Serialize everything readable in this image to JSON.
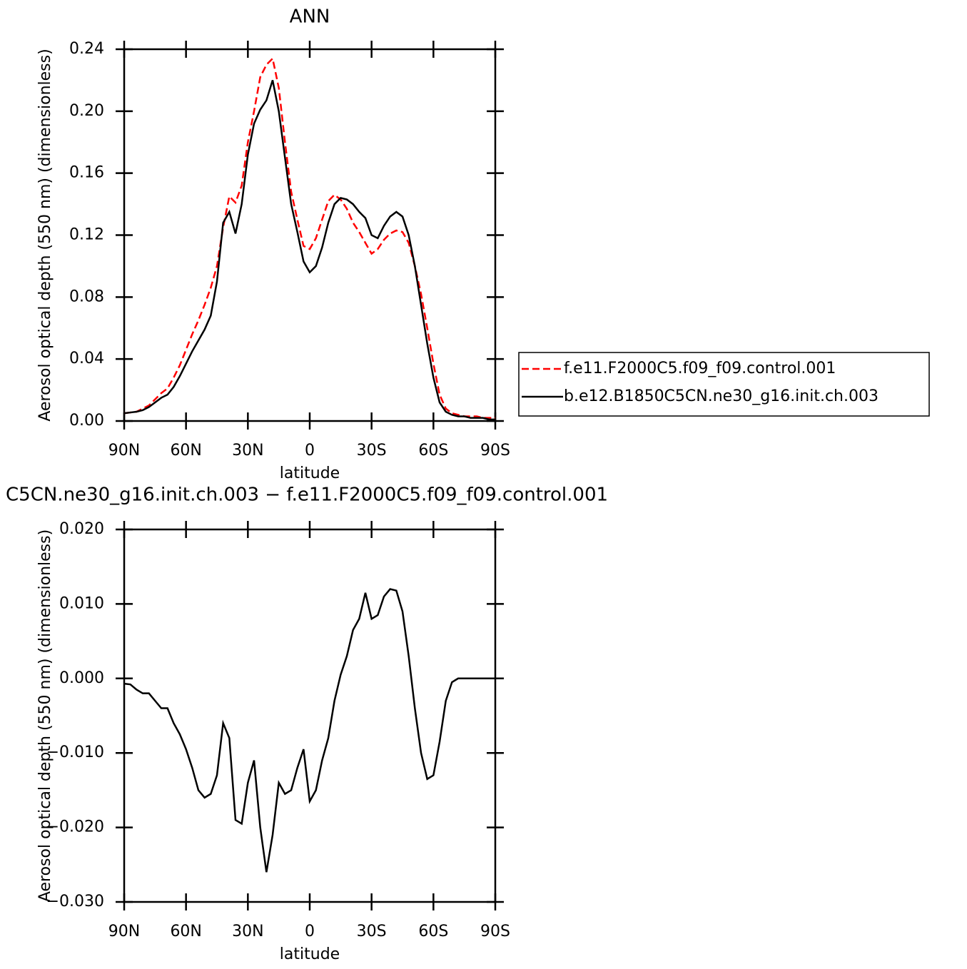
{
  "chart_data": [
    {
      "type": "line",
      "title": "ANN",
      "xlabel": "latitude",
      "ylabel": "Aerosol optical depth (550 nm) (dimensionless)",
      "x": [
        90,
        87,
        84,
        81,
        78,
        75,
        72,
        69,
        66,
        63,
        60,
        57,
        54,
        51,
        48,
        45,
        42,
        39,
        36,
        33,
        30,
        27,
        24,
        21,
        18,
        15,
        12,
        9,
        6,
        3,
        0,
        -3,
        -6,
        -9,
        -12,
        -15,
        -18,
        -21,
        -24,
        -27,
        -30,
        -33,
        -36,
        -39,
        -42,
        -45,
        -48,
        -51,
        -54,
        -57,
        -60,
        -63,
        -66,
        -69,
        -72,
        -75,
        -78,
        -81,
        -84,
        -87,
        -90
      ],
      "xlim": [
        90,
        -90
      ],
      "xticks": [
        {
          "value": 90,
          "label": "90N"
        },
        {
          "value": 60,
          "label": "60N"
        },
        {
          "value": 30,
          "label": "30N"
        },
        0,
        {
          "value": -30,
          "label": "30S"
        },
        {
          "value": -60,
          "label": "60S"
        },
        {
          "value": -90,
          "label": "90S"
        }
      ],
      "ylim": [
        0,
        0.24
      ],
      "yticks": [
        {
          "value": 0,
          "label": "0.00"
        },
        0.04,
        0.08,
        0.12,
        0.16,
        {
          "value": 0.2,
          "label": "0.20"
        },
        0.24
      ],
      "legend": "outside-right",
      "series": [
        {
          "name": "f.e11.F2000C5.f09_f09.control.001",
          "color": "#ff0000",
          "linestyle": "dashed",
          "values": [
            0.005,
            0.0055,
            0.006,
            0.008,
            0.01,
            0.014,
            0.018,
            0.021,
            0.028,
            0.036,
            0.046,
            0.056,
            0.065,
            0.075,
            0.086,
            0.1,
            0.125,
            0.145,
            0.141,
            0.152,
            0.18,
            0.2,
            0.222,
            0.23,
            0.234,
            0.215,
            0.18,
            0.148,
            0.13,
            0.113,
            0.111,
            0.118,
            0.13,
            0.142,
            0.146,
            0.143,
            0.137,
            0.128,
            0.122,
            0.115,
            0.108,
            0.111,
            0.117,
            0.121,
            0.123,
            0.122,
            0.115,
            0.1,
            0.082,
            0.06,
            0.037,
            0.017,
            0.008,
            0.005,
            0.004,
            0.003,
            0.003,
            0.003,
            0.002,
            0.002,
            0.002
          ]
        },
        {
          "name": "b.e12.B1850C5CN.ne30_g16.init.ch.003",
          "color": "#000000",
          "linestyle": "solid",
          "values": [
            0.005,
            0.0055,
            0.006,
            0.007,
            0.009,
            0.012,
            0.015,
            0.017,
            0.022,
            0.029,
            0.037,
            0.045,
            0.052,
            0.059,
            0.068,
            0.09,
            0.128,
            0.135,
            0.121,
            0.14,
            0.172,
            0.192,
            0.201,
            0.207,
            0.22,
            0.2,
            0.17,
            0.14,
            0.122,
            0.103,
            0.096,
            0.1,
            0.112,
            0.128,
            0.14,
            0.144,
            0.143,
            0.14,
            0.135,
            0.131,
            0.12,
            0.118,
            0.126,
            0.132,
            0.135,
            0.132,
            0.12,
            0.1,
            0.075,
            0.05,
            0.028,
            0.012,
            0.006,
            0.004,
            0.003,
            0.003,
            0.002,
            0.002,
            0.002,
            0.001,
            0.001
          ]
        }
      ]
    },
    {
      "type": "line",
      "title": "C5CN.ne30_g16.init.ch.003 − f.e11.F2000C5.f09_f09.control.001",
      "xlabel": "latitude",
      "ylabel": "Aerosol optical depth (550 nm) (dimensionless)",
      "x": [
        90,
        87,
        84,
        81,
        78,
        75,
        72,
        69,
        66,
        63,
        60,
        57,
        54,
        51,
        48,
        45,
        42,
        39,
        36,
        33,
        30,
        27,
        24,
        21,
        18,
        15,
        12,
        9,
        6,
        3,
        0,
        -3,
        -6,
        -9,
        -12,
        -15,
        -18,
        -21,
        -24,
        -27,
        -30,
        -33,
        -36,
        -39,
        -42,
        -45,
        -48,
        -51,
        -54,
        -57,
        -60,
        -63,
        -66,
        -69,
        -72,
        -75,
        -78,
        -81,
        -84,
        -87,
        -90
      ],
      "xlim": [
        90,
        -90
      ],
      "xticks": [
        {
          "value": 90,
          "label": "90N"
        },
        {
          "value": 60,
          "label": "60N"
        },
        {
          "value": 30,
          "label": "30N"
        },
        0,
        {
          "value": -30,
          "label": "30S"
        },
        {
          "value": -60,
          "label": "60S"
        },
        {
          "value": -90,
          "label": "90S"
        }
      ],
      "ylim": [
        -0.03,
        0.02
      ],
      "yticks": [
        {
          "value": -0.03,
          "label": "−0.030"
        },
        {
          "value": -0.02,
          "label": "−0.020"
        },
        {
          "value": -0.01,
          "label": "−0.010"
        },
        {
          "value": 0,
          "label": "0.000"
        },
        {
          "value": 0.01,
          "label": "0.010"
        },
        {
          "value": 0.02,
          "label": "0.020"
        }
      ],
      "series": [
        {
          "color": "#000000",
          "linestyle": "solid",
          "values": [
            -0.0007,
            -0.0008,
            -0.0015,
            -0.002,
            -0.002,
            -0.003,
            -0.004,
            -0.004,
            -0.006,
            -0.0075,
            -0.0095,
            -0.012,
            -0.015,
            -0.016,
            -0.0155,
            -0.013,
            -0.006,
            -0.008,
            -0.019,
            -0.0195,
            -0.014,
            -0.011,
            -0.02,
            -0.026,
            -0.021,
            -0.014,
            -0.0155,
            -0.015,
            -0.012,
            -0.0095,
            -0.0165,
            -0.015,
            -0.011,
            -0.008,
            -0.003,
            0.0005,
            0.003,
            0.0065,
            0.008,
            0.0115,
            0.008,
            0.0085,
            0.011,
            0.012,
            0.0118,
            0.009,
            0.003,
            -0.004,
            -0.01,
            -0.0135,
            -0.013,
            -0.0085,
            -0.003,
            -0.0005,
            0,
            0,
            0,
            0,
            0,
            0,
            0
          ]
        }
      ]
    }
  ]
}
